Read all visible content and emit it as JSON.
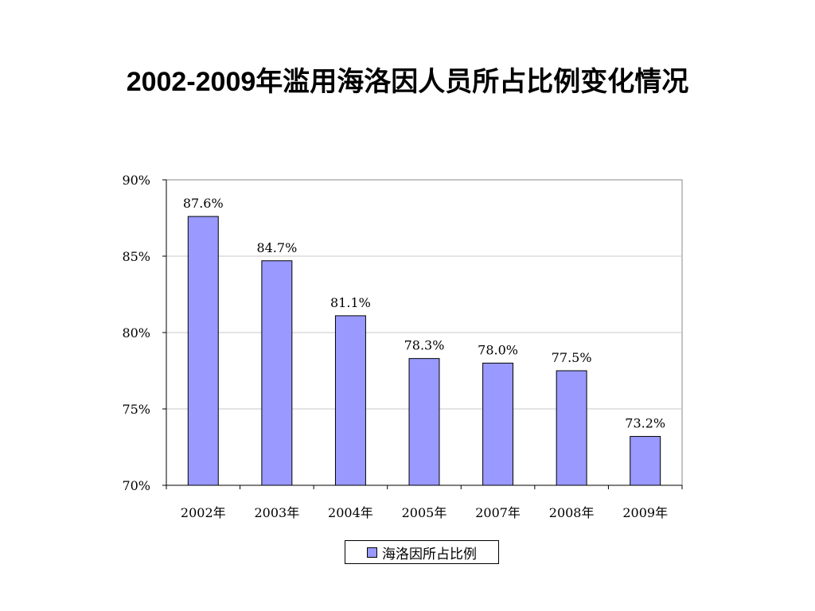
{
  "chart_data": {
    "type": "bar",
    "title": "2002-2009年滥用海洛因人员所占比例变化情况",
    "categories": [
      "2002年",
      "2003年",
      "2004年",
      "2005年",
      "2007年",
      "2008年",
      "2009年"
    ],
    "series": [
      {
        "name": "海洛因所占比例",
        "values": [
          87.6,
          84.7,
          81.1,
          78.3,
          78.0,
          77.5,
          73.2
        ],
        "data_labels": [
          "87.6%",
          "84.7%",
          "81.1%",
          "78.3%",
          "78.0%",
          "77.5%",
          "73.2%"
        ],
        "color": "#9999ff"
      }
    ],
    "xlabel": "",
    "ylabel": "",
    "ylim": [
      70,
      90
    ],
    "yticks": [
      70,
      75,
      80,
      85,
      90
    ],
    "ytick_labels": [
      "70%",
      "75%",
      "80%",
      "85%",
      "90%"
    ],
    "grid": true,
    "legend_position": "bottom"
  }
}
